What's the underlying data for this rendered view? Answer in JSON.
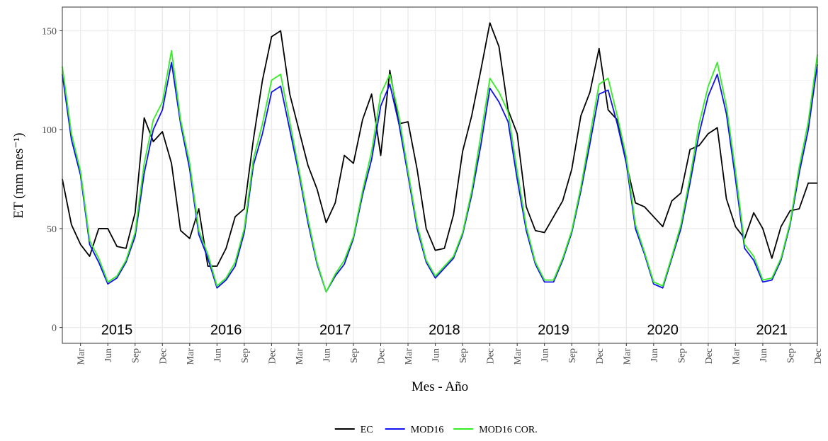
{
  "chart_data": {
    "type": "line",
    "x_label": "Mes - Año",
    "y_label": "ET (mm mes⁻¹)",
    "categories": [
      null,
      null,
      "Mar",
      null,
      null,
      "Jun",
      null,
      null,
      "Sep",
      null,
      null,
      "Dec",
      null,
      null,
      "Mar",
      null,
      null,
      "Jun",
      null,
      null,
      "Sep",
      null,
      null,
      "Dec",
      null,
      null,
      "Mar",
      null,
      null,
      "Jun",
      null,
      null,
      "Sep",
      null,
      null,
      "Dec",
      null,
      null,
      "Mar",
      null,
      null,
      "Jun",
      null,
      null,
      "Sep",
      null,
      null,
      "Dec",
      null,
      null,
      "Mar",
      null,
      null,
      "Jun",
      null,
      null,
      "Sep",
      null,
      null,
      "Dec",
      null,
      null,
      "Mar",
      null,
      null,
      "Jun",
      null,
      null,
      "Sep",
      null,
      null,
      "Dec",
      null,
      null,
      "Mar",
      null,
      null,
      "Jun",
      null,
      null,
      "Sep",
      null,
      null,
      "Dec"
    ],
    "year_labels": [
      "2015",
      "2016",
      "2017",
      "2018",
      "2019",
      "2020",
      "2021"
    ],
    "ylim": [
      -8,
      162
    ],
    "yticks": [
      0,
      50,
      100,
      150
    ],
    "grid": true,
    "legend": "bottom",
    "series": [
      {
        "name": "EC",
        "color": "#000000",
        "values": [
          75,
          52,
          42,
          36,
          50,
          50,
          41,
          40,
          58,
          106,
          94,
          99,
          83,
          49,
          45,
          60,
          31,
          31,
          40,
          56,
          60,
          95,
          125,
          147,
          150,
          118,
          100,
          82,
          70,
          53,
          63,
          87,
          83,
          105,
          118,
          87,
          130,
          103,
          104,
          80,
          50,
          39,
          40,
          57,
          89,
          107,
          130,
          154,
          142,
          110,
          98,
          61,
          49,
          48,
          56,
          64,
          80,
          107,
          119,
          141,
          110,
          105,
          83,
          63,
          61,
          56,
          51,
          64,
          68,
          90,
          92,
          98,
          101,
          65,
          51,
          45,
          58,
          50,
          35,
          51,
          59,
          60,
          73,
          73
        ]
      },
      {
        "name": "MOD16",
        "color": "#1010f0",
        "values": [
          128,
          95,
          77,
          42,
          33,
          22,
          25,
          33,
          46,
          78,
          100,
          110,
          134,
          103,
          80,
          47,
          35,
          20,
          24,
          31,
          48,
          82,
          98,
          119,
          122,
          100,
          78,
          53,
          32,
          18,
          26,
          32,
          45,
          67,
          85,
          112,
          123,
          103,
          77,
          50,
          33,
          25,
          30,
          35,
          47,
          67,
          92,
          121,
          114,
          104,
          75,
          49,
          32,
          23,
          23,
          34,
          48,
          69,
          93,
          118,
          120,
          103,
          83,
          50,
          37,
          22,
          20,
          35,
          50,
          73,
          98,
          117,
          128,
          108,
          75,
          40,
          34,
          23,
          24,
          34,
          52,
          78,
          100,
          133
        ]
      },
      {
        "name": "MOD16 COR.",
        "color": "#33ee22",
        "values": [
          132,
          98,
          79,
          44,
          35,
          23,
          26,
          34,
          48,
          83,
          105,
          114,
          140,
          105,
          83,
          49,
          37,
          21,
          25,
          33,
          50,
          85,
          103,
          125,
          128,
          104,
          80,
          55,
          33,
          18,
          27,
          34,
          46,
          69,
          89,
          118,
          128,
          107,
          79,
          52,
          34,
          26,
          31,
          36,
          48,
          69,
          97,
          126,
          119,
          109,
          79,
          51,
          33,
          24,
          24,
          35,
          49,
          71,
          97,
          123,
          126,
          107,
          86,
          52,
          38,
          23,
          21,
          36,
          52,
          76,
          103,
          122,
          134,
          112,
          79,
          42,
          36,
          24,
          25,
          35,
          53,
          81,
          104,
          138
        ]
      }
    ]
  }
}
